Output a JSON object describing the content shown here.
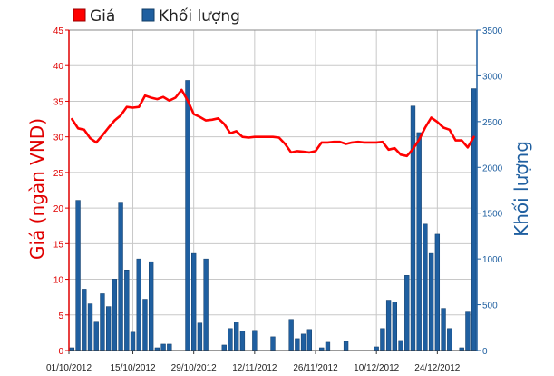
{
  "chart_data": {
    "type": "bar+line",
    "legend": {
      "placement": "top-left",
      "items": [
        {
          "label": "Giá",
          "color": "#ff0000",
          "icon": "red-square-icon"
        },
        {
          "label": "Khối lượng",
          "color": "#1f5fa0",
          "icon": "blue-square-icon"
        }
      ]
    },
    "y_left": {
      "label": "Giá (ngàn VND)",
      "color": "#e00000",
      "min": 0,
      "max": 45,
      "step": 5,
      "ticks": [
        "0",
        "5",
        "10",
        "15",
        "20",
        "25",
        "30",
        "35",
        "40",
        "45"
      ]
    },
    "y_right": {
      "label": "Khối lượng",
      "color": "#1f5fa0",
      "min": 0,
      "max": 3500,
      "step": 500,
      "ticks": [
        "0",
        "500",
        "1000",
        "1500",
        "2000",
        "2500",
        "3000",
        "3500"
      ]
    },
    "x_tick_labels": [
      "01/10/2012",
      "15/10/2012",
      "29/10/2012",
      "12/11/2012",
      "26/11/2012",
      "10/12/2012",
      "24/12/2012"
    ],
    "grid": true,
    "series": [
      {
        "name": "Khối lượng",
        "kind": "bar",
        "color": "#1f5fa0",
        "values": [
          30,
          1640,
          670,
          510,
          320,
          620,
          480,
          780,
          1620,
          880,
          200,
          1000,
          560,
          970,
          30,
          70,
          70,
          0,
          0,
          2950,
          1060,
          300,
          1000,
          0,
          0,
          60,
          240,
          310,
          210,
          0,
          220,
          0,
          0,
          150,
          0,
          0,
          340,
          130,
          180,
          230,
          0,
          30,
          90,
          0,
          0,
          100,
          0,
          0,
          0,
          0,
          40,
          240,
          550,
          530,
          110,
          820,
          2670,
          2380,
          1380,
          1060,
          1270,
          460,
          240,
          0,
          30,
          430,
          2860
        ]
      },
      {
        "name": "Giá",
        "kind": "line",
        "color": "#ff0000",
        "values": [
          32.5,
          31.2,
          31.0,
          29.8,
          29.2,
          30.2,
          31.3,
          32.3,
          33.0,
          34.2,
          34.1,
          34.2,
          35.8,
          35.5,
          35.3,
          35.6,
          35.1,
          35.5,
          36.6,
          35.1,
          33.2,
          32.8,
          32.3,
          32.4,
          32.6,
          31.8,
          30.5,
          30.8,
          30.0,
          29.9,
          30.0,
          30.0,
          30.0,
          30.0,
          29.9,
          29.0,
          27.8,
          28.0,
          27.9,
          27.8,
          28.0,
          29.2,
          29.2,
          29.3,
          29.3,
          29.0,
          29.2,
          29.3,
          29.2,
          29.2,
          29.2,
          29.3,
          28.2,
          28.4,
          27.5,
          27.3,
          28.3,
          29.6,
          31.3,
          32.7,
          32.1,
          31.3,
          31.0,
          29.5,
          29.5,
          28.5,
          30.0
        ]
      }
    ]
  }
}
